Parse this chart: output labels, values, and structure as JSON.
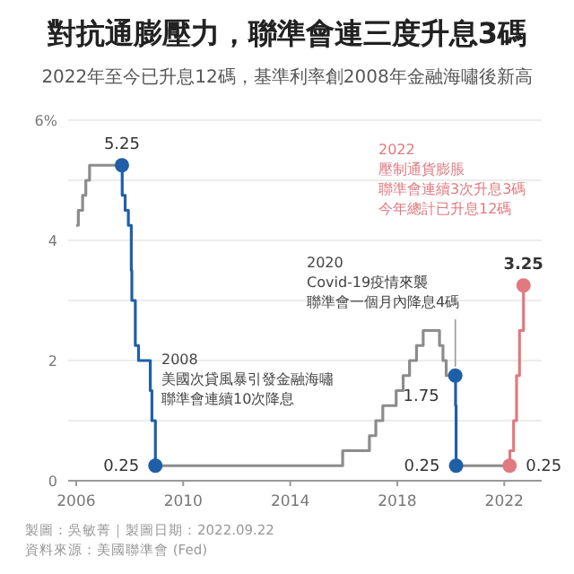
{
  "chart_data": {
    "type": "step",
    "title": "對抗通膨壓力，聯準會連三度升息3碼",
    "subtitle": "2022年至今已升息12碼，基準利率創2008年金融海嘯後新高",
    "xlim": [
      2005.7,
      2023.4
    ],
    "xticks": [
      2006,
      2010,
      2014,
      2018,
      2022
    ],
    "ylim": [
      0,
      6
    ],
    "yticks": [
      0,
      {
        "value": 1,
        "label": null
      },
      2,
      {
        "value": 3,
        "label": null
      },
      4,
      {
        "value": 5,
        "label": null
      },
      {
        "value": 6,
        "label": "6%"
      }
    ],
    "grid": "y",
    "line_style": "solid",
    "series": [
      {
        "color": "#8c8c8c",
        "x": [
          2006.0,
          2006.08,
          2006.24,
          2006.36,
          2006.5,
          2007.71,
          null,
          2008.96,
          2015.96,
          2016.96,
          2017.2,
          2017.46,
          2017.96,
          2018.22,
          2018.46,
          2018.72,
          2018.97,
          2019.58,
          2019.71,
          2019.83,
          2020.17,
          null,
          2020.2,
          2022.2
        ],
        "values": [
          4.25,
          4.5,
          4.75,
          5.0,
          5.25,
          5.25,
          null,
          0.25,
          0.5,
          0.75,
          1.0,
          1.25,
          1.5,
          1.75,
          2.0,
          2.25,
          2.5,
          2.25,
          2.0,
          1.75,
          1.75,
          null,
          0.25,
          0.25
        ]
      },
      {
        "color": "#1f5fa8",
        "x": [
          2007.71,
          2007.72,
          2007.83,
          2007.95,
          2008.06,
          2008.08,
          2008.21,
          2008.33,
          2008.77,
          2008.83,
          2008.96,
          null,
          2020.17,
          2020.18,
          2020.2
        ],
        "values": [
          5.25,
          4.75,
          4.5,
          4.25,
          3.5,
          3.0,
          2.25,
          2.0,
          1.5,
          1.0,
          0.25,
          null,
          1.75,
          1.25,
          0.25
        ]
      },
      {
        "color": "#e07a80",
        "x": [
          2022.2,
          2022.21,
          2022.35,
          2022.46,
          2022.57,
          2022.72
        ],
        "values": [
          0.25,
          0.5,
          1.0,
          1.75,
          2.5,
          3.25
        ]
      },
      {
        "type": "scatter",
        "marker": "circle",
        "x": [
          2007.71,
          2008.96,
          2020.17,
          2020.2,
          2022.2,
          2022.72
        ],
        "values": [
          5.25,
          0.25,
          1.75,
          0.25,
          0.25,
          3.25
        ],
        "colors": [
          "#1f5fa8",
          "#1f5fa8",
          "#1f5fa8",
          "#1f5fa8",
          "#e07a80",
          "#e07a80"
        ],
        "value_labels": [
          "5.25",
          "0.25",
          "1.75",
          "0.25",
          "0.25",
          "3.25"
        ]
      }
    ],
    "annotations": [
      "2008",
      "美國次貸風暴引發金融海嘯",
      "聯準會連續10次降息",
      "2020",
      "Covid-19疫情來襲",
      "聯準會一個月內降息4碼",
      "2022",
      "壓制通貨膨脹",
      "聯準會連續3次升息3碼",
      "今年總計已升息12碼",
      "製圖：吳敏菁｜製圖日期：2022.09.22",
      "資料來源：美國聯準會 (Fed)"
    ]
  }
}
